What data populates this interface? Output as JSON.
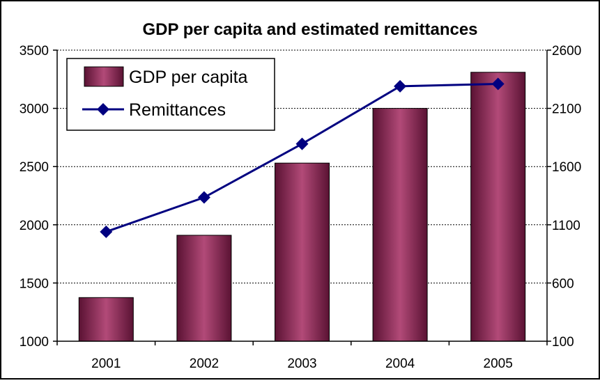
{
  "chart_data": {
    "type": "bar",
    "title": "GDP per capita and estimated remittances",
    "categories": [
      "2001",
      "2002",
      "2003",
      "2004",
      "2005"
    ],
    "series": [
      {
        "name": "GDP per capita",
        "type": "bar",
        "axis": "left",
        "values": [
          1375,
          1910,
          2530,
          3000,
          3310
        ]
      },
      {
        "name": "Remittances",
        "type": "line",
        "axis": "right",
        "values": [
          1040,
          1335,
          1795,
          2290,
          2310
        ]
      }
    ],
    "y_left": {
      "min": 1000,
      "max": 3500,
      "ticks": [
        "1000",
        "1500",
        "2000",
        "2500",
        "3000",
        "3500"
      ]
    },
    "y_right": {
      "min": 100,
      "max": 2600,
      "ticks": [
        "100",
        "600",
        "1100",
        "1600",
        "2100",
        "2600"
      ]
    },
    "grid": true,
    "legend_position": "top-left",
    "colors": {
      "bar": "#993366",
      "line": "#000080",
      "grid": "#000000"
    }
  }
}
